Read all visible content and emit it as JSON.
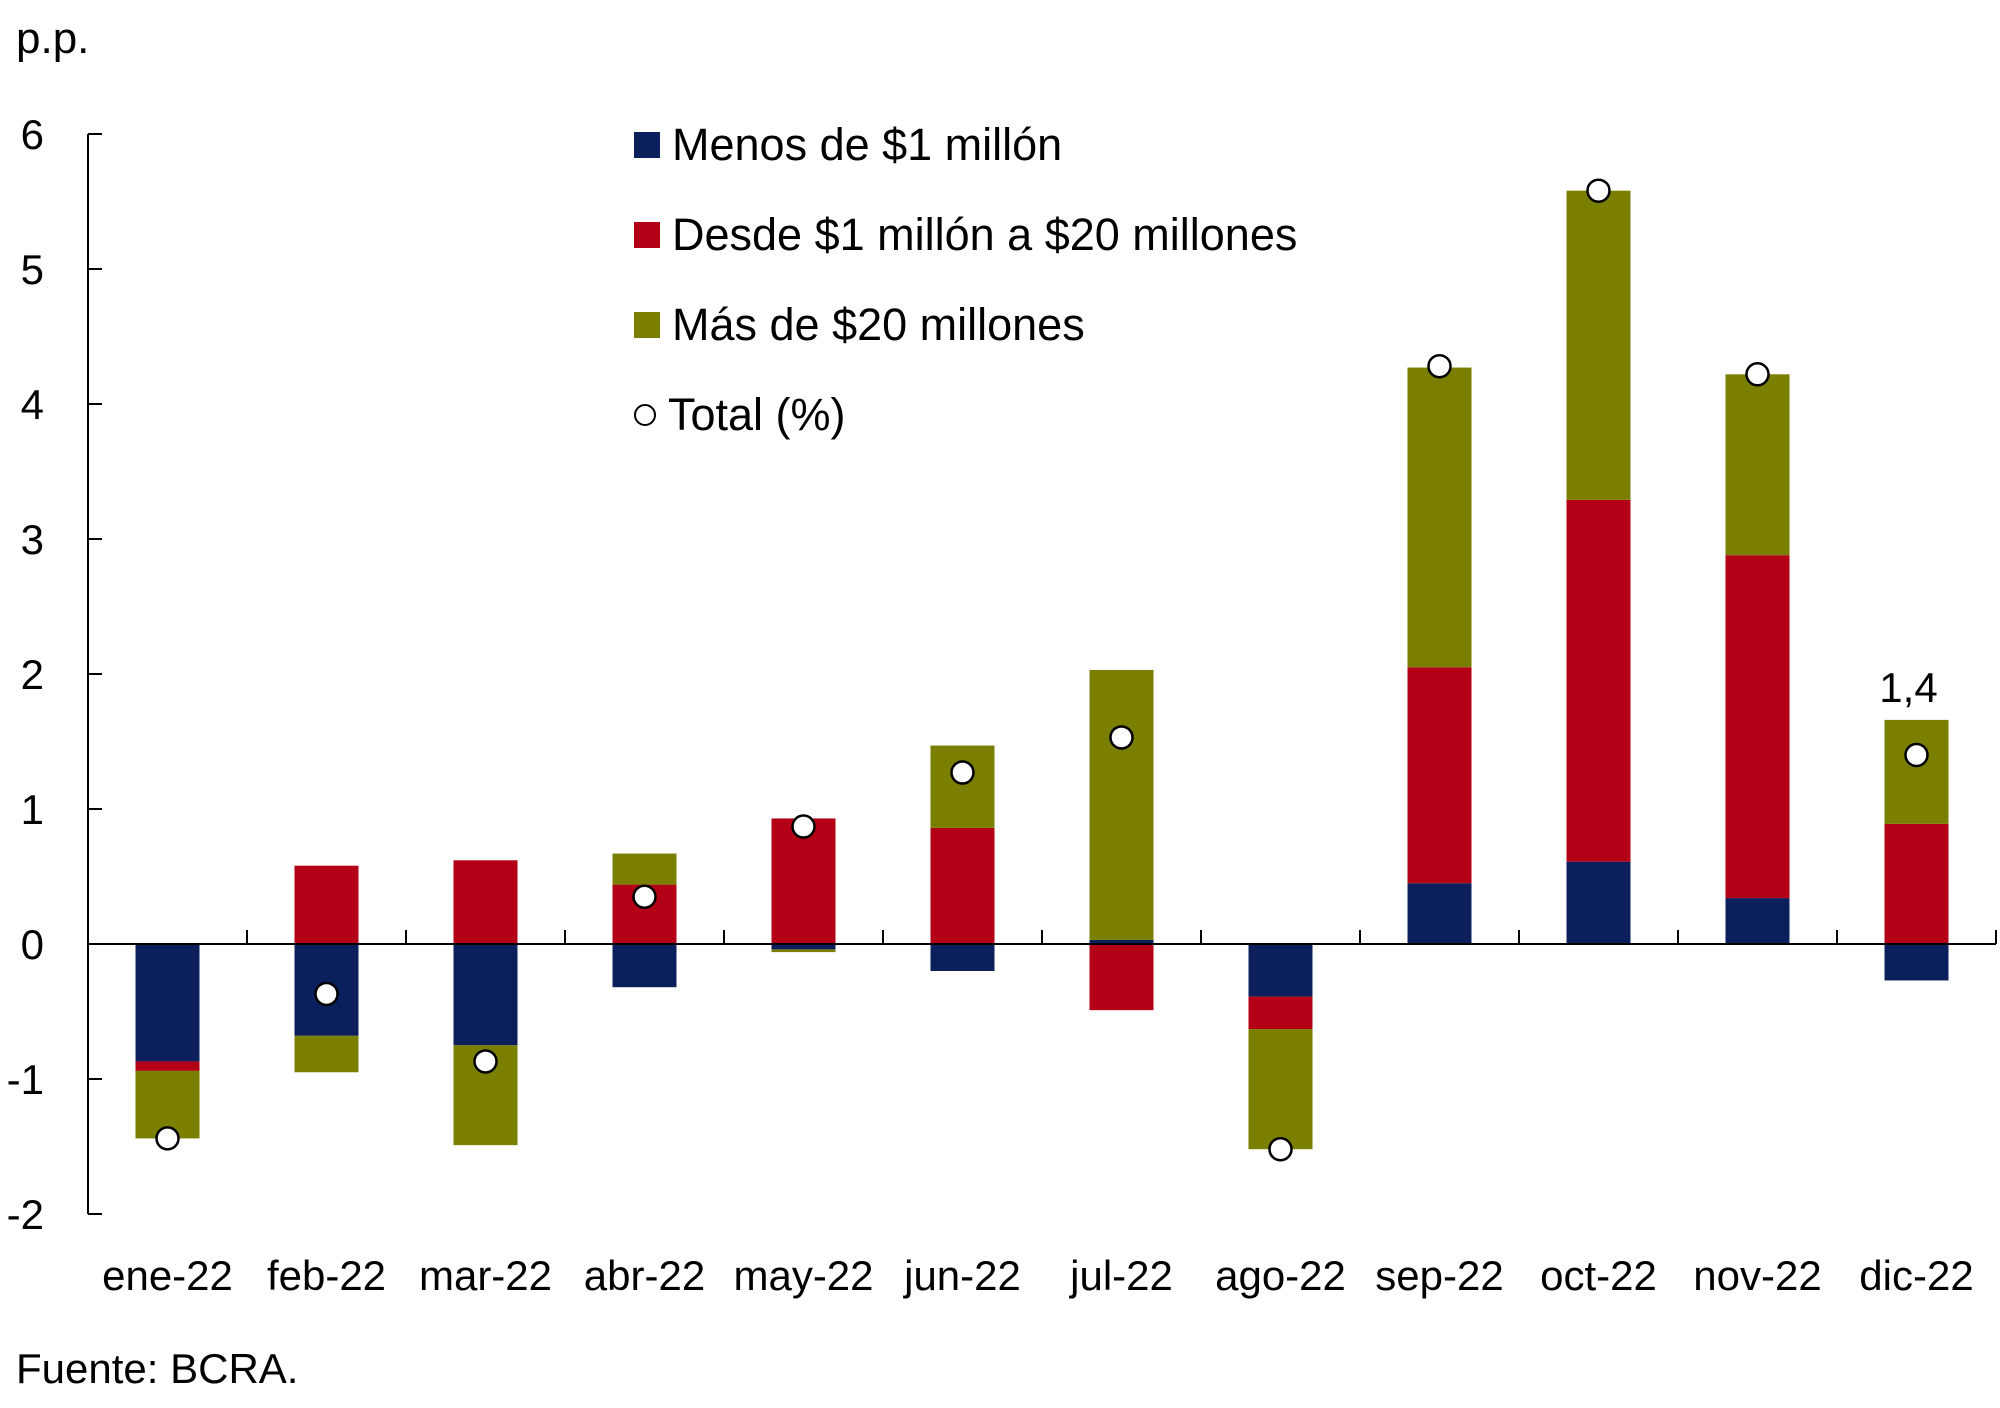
{
  "chart_data": {
    "type": "bar",
    "stacked": true,
    "title": "",
    "ylabel": "p.p.",
    "xlabel": "",
    "ylim": [
      -2,
      6
    ],
    "yticks": [
      -2,
      -1,
      0,
      1,
      2,
      3,
      4,
      5,
      6
    ],
    "categories": [
      "ene-22",
      "feb-22",
      "mar-22",
      "abr-22",
      "may-22",
      "jun-22",
      "jul-22",
      "ago-22",
      "sep-22",
      "oct-22",
      "nov-22",
      "dic-22"
    ],
    "series": [
      {
        "name": "Menos de $1 millón",
        "color": "#0b1f5c",
        "values": [
          -0.87,
          -0.68,
          -0.75,
          -0.32,
          -0.04,
          -0.2,
          0.03,
          -0.39,
          0.45,
          0.61,
          0.34,
          -0.27
        ]
      },
      {
        "name": "Desde $1 millón a $20 millones",
        "color": "#b30017",
        "values": [
          -0.07,
          0.58,
          0.62,
          0.44,
          0.93,
          0.86,
          -0.49,
          -0.24,
          1.6,
          2.68,
          2.54,
          0.89
        ]
      },
      {
        "name": "Más de $20 millones",
        "color": "#7a7f00",
        "values": [
          -0.5,
          -0.27,
          -0.74,
          0.23,
          -0.02,
          0.61,
          2.0,
          -0.89,
          2.22,
          2.29,
          1.34,
          0.77
        ]
      }
    ],
    "total": {
      "name": "Total (%)",
      "values": [
        -1.44,
        -0.37,
        -0.87,
        0.35,
        0.87,
        1.27,
        1.53,
        -1.52,
        4.28,
        5.58,
        4.22,
        1.4
      ]
    },
    "annotations": [
      {
        "category": "dic-22",
        "text": "1,4"
      }
    ],
    "legend_position": "top-center",
    "grid": false
  },
  "labels": {
    "unit": "p.p.",
    "source": "Fuente: BCRA.",
    "legend": [
      "Menos de $1 millón",
      "Desde $1 millón a $20 millones",
      "Más de $20 millones",
      "Total (%)"
    ]
  }
}
